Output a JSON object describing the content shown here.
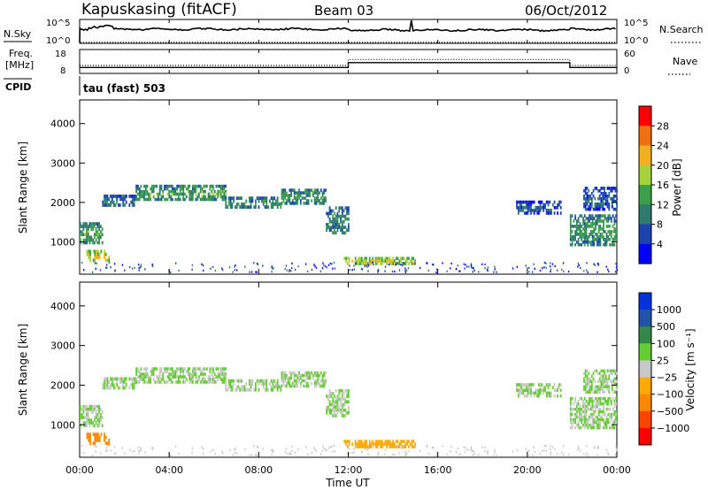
{
  "header": {
    "station": "Kapuskasing (fitACF)",
    "beam": "Beam 03",
    "date": "06/Oct/2012"
  },
  "top_panels": {
    "nsky": {
      "label": "N.Sky",
      "ticks": [
        "10^5",
        "10^0"
      ]
    },
    "nsearch": {
      "label": "N.Search",
      "ticks": [
        "10^5",
        "10^0"
      ]
    },
    "freq": {
      "label_line1": "Freq.",
      "label_line2": "[MHz]",
      "ticks": [
        "18",
        "8"
      ]
    },
    "nave": {
      "label": "Nave",
      "ticks": [
        "60",
        "0"
      ]
    },
    "cpid": {
      "label": "CPID",
      "value": "tau (fast) 503"
    }
  },
  "power_panel": {
    "ylabel": "Slant Range [km]",
    "yticks": [
      "4000",
      "3000",
      "2000",
      "1000"
    ],
    "colorbar_label": "Power [dB]",
    "colorbar_ticks": [
      "28",
      "24",
      "20",
      "16",
      "12",
      "8",
      "4"
    ]
  },
  "velocity_panel": {
    "ylabel": "Slant Range [km]",
    "yticks": [
      "4000",
      "3000",
      "2000",
      "1000"
    ],
    "colorbar_label": "Velocity [m s⁻¹]",
    "colorbar_ticks": [
      "1000",
      "500",
      "100",
      "25",
      "−25",
      "−100",
      "−500",
      "−1000"
    ]
  },
  "xaxis": {
    "label": "Time UT",
    "ticks": [
      "00:00",
      "04:00",
      "08:00",
      "12:00",
      "16:00",
      "20:00",
      "00:00"
    ]
  },
  "colors": {
    "power": [
      "#0000ff",
      "#1b44b0",
      "#2f7a6e",
      "#3ca04a",
      "#a6d23a",
      "#f0b020",
      "#f07010",
      "#ff0000"
    ],
    "velocity": [
      "#ff0000",
      "#ff4400",
      "#ff8800",
      "#ffaa00",
      "#c8c8c8",
      "#66cc33",
      "#33884a",
      "#2255aa",
      "#0033dd"
    ]
  },
  "chart_data": {
    "type": "heatmap",
    "time_range_hours": [
      0,
      24
    ],
    "range_ylim_km": [
      180,
      4600
    ],
    "frequency_mhz": {
      "ylim": [
        8,
        18
      ],
      "segments": [
        {
          "t": [
            0,
            12.0
          ],
          "value": 10.5
        },
        {
          "t": [
            12.0,
            21.9
          ],
          "value": 12.5
        },
        {
          "t": [
            21.9,
            24
          ],
          "value": 10.5
        }
      ]
    },
    "nave": {
      "ylim": [
        0,
        60
      ],
      "segments": [
        {
          "t": [
            0,
            12.0
          ],
          "value": 20
        },
        {
          "t": [
            12.0,
            21.9
          ],
          "value": 35
        },
        {
          "t": [
            21.9,
            24
          ],
          "value": 20
        }
      ]
    },
    "echo_bands": [
      {
        "t": [
          0.0,
          1.0
        ],
        "range_km": [
          950,
          1500
        ],
        "power_db": 14,
        "velocity": 25
      },
      {
        "t": [
          0.3,
          1.3
        ],
        "range_km": [
          500,
          800
        ],
        "power_db": 20,
        "velocity": -300
      },
      {
        "t": [
          1.0,
          2.5
        ],
        "range_km": [
          1900,
          2200
        ],
        "power_db": 10,
        "velocity": 25
      },
      {
        "t": [
          2.5,
          6.5
        ],
        "range_km": [
          2050,
          2450
        ],
        "power_db": 14,
        "velocity": 25
      },
      {
        "t": [
          6.5,
          9.0
        ],
        "range_km": [
          1850,
          2150
        ],
        "power_db": 12,
        "velocity": 25
      },
      {
        "t": [
          9.0,
          11.0
        ],
        "range_km": [
          1950,
          2350
        ],
        "power_db": 13,
        "velocity": 25
      },
      {
        "t": [
          11.0,
          12.0
        ],
        "range_km": [
          1200,
          1900
        ],
        "power_db": 12,
        "velocity": 25
      },
      {
        "t": [
          11.8,
          15.0
        ],
        "range_km": [
          420,
          620
        ],
        "power_db": 20,
        "velocity": -50
      },
      {
        "t": [
          19.5,
          21.5
        ],
        "range_km": [
          1700,
          2050
        ],
        "power_db": 8,
        "velocity": 25
      },
      {
        "t": [
          21.9,
          24.0
        ],
        "range_km": [
          900,
          1700
        ],
        "power_db": 13,
        "velocity": 25
      },
      {
        "t": [
          22.5,
          24.0
        ],
        "range_km": [
          1800,
          2400
        ],
        "power_db": 8,
        "velocity": 25
      }
    ]
  }
}
